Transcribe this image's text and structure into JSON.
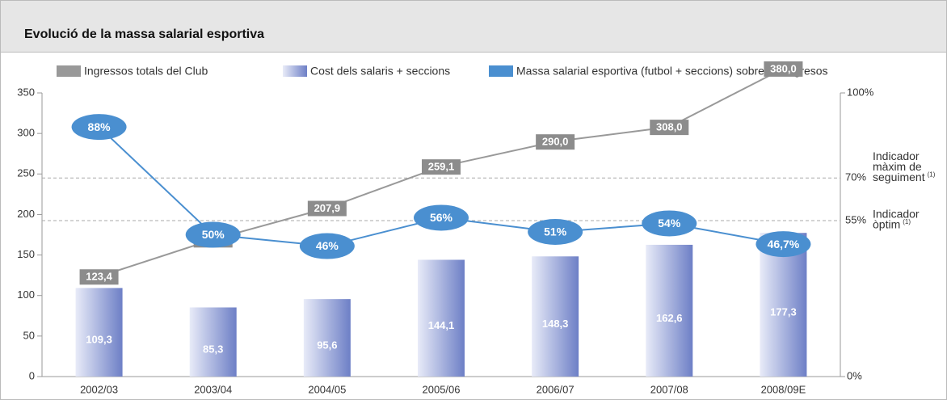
{
  "chart_data": {
    "type": "bar_line",
    "title": "Evolució de la massa salarial esportiva",
    "categories": [
      "2002/03",
      "2003/04",
      "2004/05",
      "2005/06",
      "2006/07",
      "2007/08",
      "2008/09E"
    ],
    "series": [
      {
        "name": "Ingressos totals del Club",
        "type": "line",
        "color": "#999999",
        "label_color": "#8c8c8c",
        "values": [
          123.4,
          169.2,
          207.9,
          259.1,
          290.0,
          308.0,
          380.0
        ],
        "value_labels": [
          "123,4",
          "169,2",
          "207,9",
          "259,1",
          "290,0",
          "308,0",
          "380,0"
        ]
      },
      {
        "name": "Cost dels salaris + seccions",
        "type": "bar",
        "color": "#6d7fc6",
        "values": [
          109.3,
          85.3,
          95.6,
          144.1,
          148.3,
          162.6,
          177.3
        ],
        "value_labels": [
          "109,3",
          "85,3",
          "95,6",
          "144,1",
          "148,3",
          "162,6",
          "177,3"
        ]
      },
      {
        "name": "Massa salarial esportiva (futbol + seccions) sobre els ingresos",
        "type": "line",
        "axis": "y2",
        "color": "#4a8fd0",
        "values": [
          88,
          50,
          46,
          56,
          51,
          54,
          46.7
        ],
        "value_labels": [
          "88%",
          "50%",
          "46%",
          "56%",
          "51%",
          "54%",
          "46,7%"
        ]
      }
    ],
    "ylim": [
      0,
      350
    ],
    "yticks": [
      0,
      50,
      100,
      150,
      200,
      250,
      300,
      350
    ],
    "y2lim": [
      0,
      100
    ],
    "y2ticks": [
      {
        "value": 0,
        "label": "0%"
      },
      {
        "value": 100,
        "label": "100%"
      }
    ],
    "reference_lines": [
      {
        "value": 70,
        "label": "70%",
        "text": [
          "Indicador",
          "màxim de",
          "seguiment"
        ],
        "note": "(1)"
      },
      {
        "value": 55,
        "label": "55%",
        "text": [
          "Indicador",
          "òptim"
        ],
        "note": "(1)"
      }
    ]
  }
}
